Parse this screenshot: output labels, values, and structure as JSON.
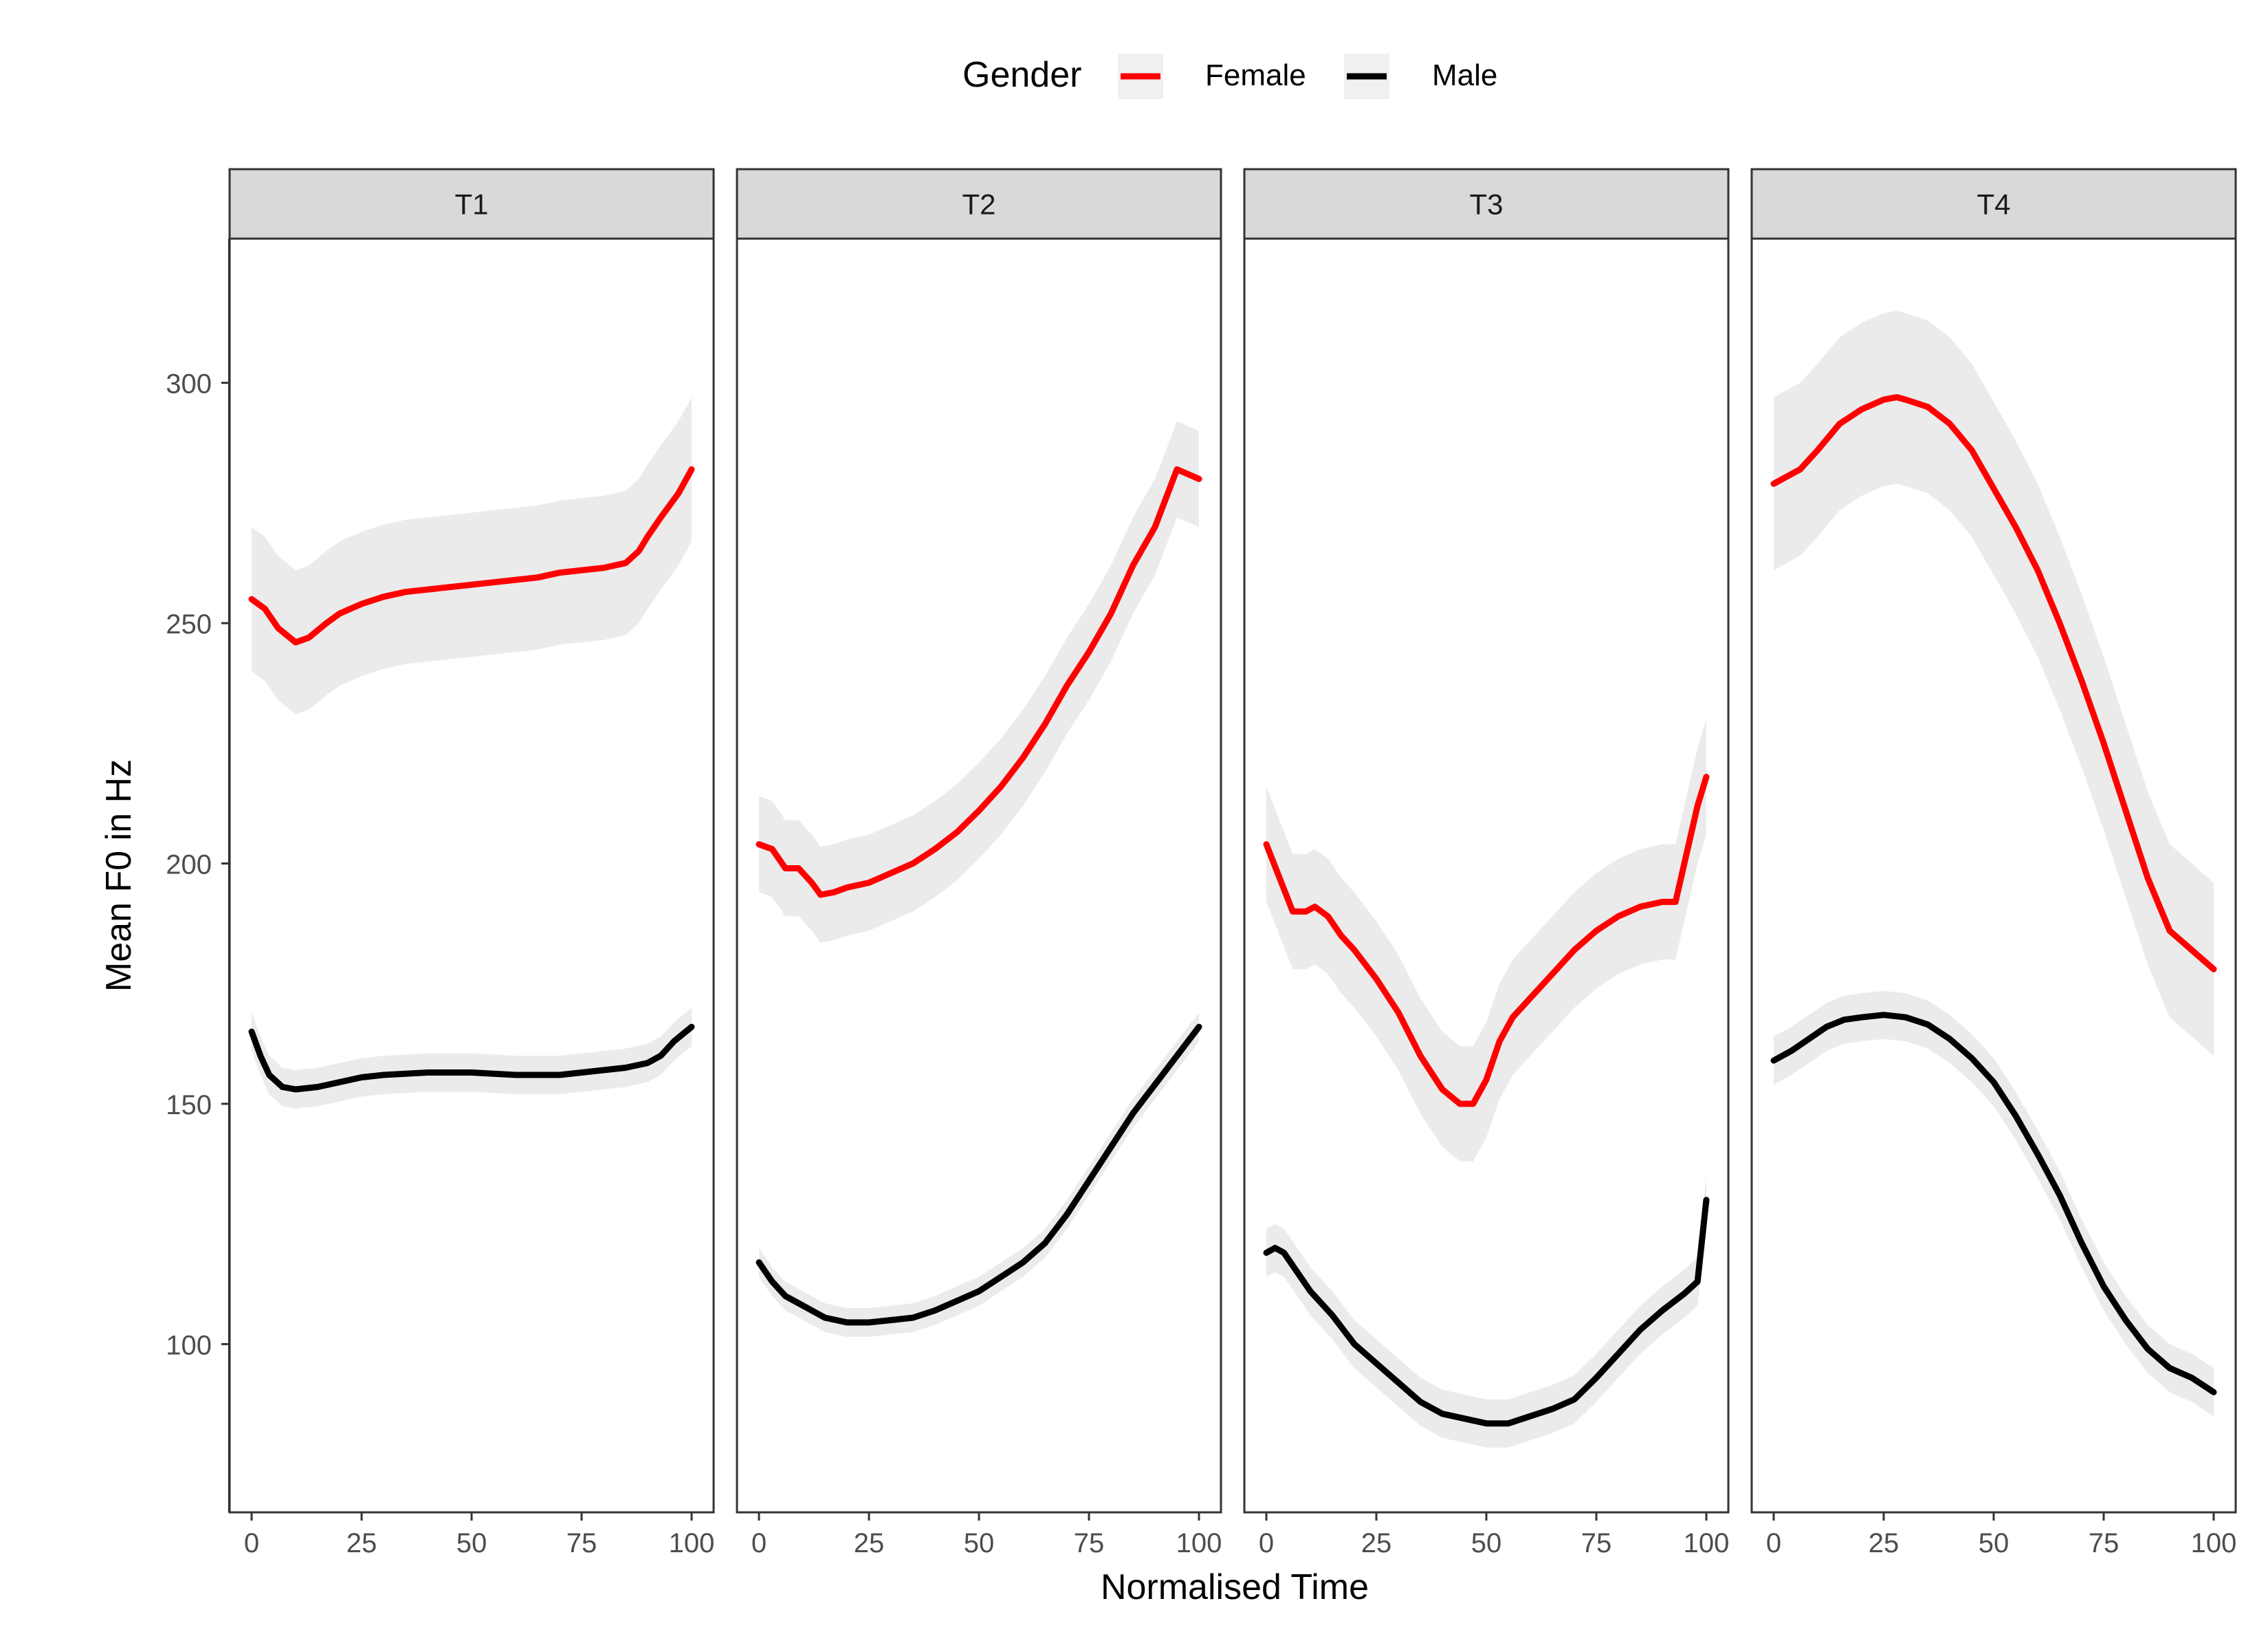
{
  "chart_data": {
    "type": "line",
    "facet_variable": "tone",
    "xlabel": "Normalised Time",
    "ylabel": "Mean F0 in Hz",
    "xlim": [
      -5,
      105
    ],
    "ylim": [
      65,
      330
    ],
    "x_ticks": [
      0,
      25,
      50,
      75,
      100
    ],
    "y_ticks": [
      100,
      150,
      200,
      250,
      300
    ],
    "grid": false,
    "legend": {
      "title": "Gender",
      "position": "top",
      "entries": [
        {
          "label": "Female",
          "color": "#ff0000"
        },
        {
          "label": "Male",
          "color": "#000000"
        }
      ]
    },
    "colors": {
      "female": "#ff0000",
      "male": "#000000",
      "ribbon": "#ebebeb",
      "strip": "#d9d9d9"
    },
    "panels": [
      {
        "label": "T1",
        "series": [
          {
            "name": "Female",
            "x": [
              0,
              3,
              6,
              10,
              13,
              17,
              20,
              25,
              30,
              35,
              40,
              45,
              50,
              55,
              60,
              65,
              70,
              75,
              80,
              85,
              88,
              90,
              93,
              97,
              100
            ],
            "y": [
              255,
              253,
              249,
              246,
              247,
              250,
              252,
              254,
              255.5,
              256.5,
              257,
              257.5,
              258,
              258.5,
              259,
              259.5,
              260.5,
              261,
              261.5,
              262.5,
              265,
              268,
              272,
              277,
              282
            ],
            "band": [
              15,
              15,
              15,
              15,
              15,
              15,
              15,
              15,
              15,
              15,
              15,
              15,
              15,
              15,
              15,
              15,
              15,
              15,
              15,
              15,
              15,
              15,
              15,
              15,
              15
            ]
          },
          {
            "name": "Male",
            "x": [
              0,
              2,
              4,
              7,
              10,
              15,
              20,
              25,
              30,
              40,
              50,
              60,
              70,
              75,
              80,
              85,
              90,
              93,
              96,
              100
            ],
            "y": [
              165,
              160,
              156,
              153.5,
              153,
              153.5,
              154.5,
              155.5,
              156,
              156.5,
              156.5,
              156,
              156,
              156.5,
              157,
              157.5,
              158.5,
              160,
              163,
              166
            ],
            "band": [
              4,
              4,
              4,
              4,
              4,
              4,
              4,
              4,
              4,
              4,
              4,
              4,
              4,
              4,
              4,
              4,
              4,
              4,
              4,
              4
            ]
          }
        ]
      },
      {
        "label": "T2",
        "series": [
          {
            "name": "Female",
            "x": [
              0,
              3,
              6,
              9,
              12,
              14,
              17,
              20,
              25,
              30,
              35,
              40,
              45,
              50,
              55,
              60,
              65,
              70,
              75,
              80,
              85,
              90,
              95,
              100
            ],
            "y": [
              204,
              203,
              199,
              199,
              196,
              193.5,
              194,
              195,
              196,
              198,
              200,
              203,
              206.5,
              211,
              216,
              222,
              229,
              237,
              244,
              252,
              262,
              270,
              282,
              280
            ],
            "band": [
              10,
              10,
              10,
              10,
              10,
              10,
              10,
              10,
              10,
              10,
              10,
              10,
              10,
              10,
              10,
              10,
              10,
              10,
              10,
              10,
              10,
              10,
              10,
              10
            ]
          },
          {
            "name": "Male",
            "x": [
              0,
              3,
              6,
              10,
              15,
              20,
              25,
              30,
              35,
              40,
              45,
              50,
              55,
              60,
              65,
              70,
              75,
              80,
              85,
              90,
              95,
              100
            ],
            "y": [
              117,
              113,
              110,
              108,
              105.5,
              104.5,
              104.5,
              105,
              105.5,
              107,
              109,
              111,
              114,
              117,
              121,
              127,
              134,
              141,
              148,
              154,
              160,
              166
            ],
            "band": [
              3,
              3,
              3,
              3,
              3,
              3,
              3,
              3,
              3,
              3,
              3,
              3,
              3,
              3,
              3,
              3,
              3,
              3,
              3,
              3,
              3,
              3
            ]
          }
        ]
      },
      {
        "label": "T3",
        "series": [
          {
            "name": "Female",
            "x": [
              0,
              3,
              6,
              9,
              11,
              14,
              17,
              20,
              25,
              30,
              35,
              40,
              44,
              47,
              50,
              53,
              56,
              60,
              65,
              70,
              75,
              80,
              85,
              90,
              93,
              95,
              98,
              100
            ],
            "y": [
              204,
              197,
              190,
              190,
              191,
              189,
              185,
              182,
              176,
              169,
              160,
              153,
              150,
              150,
              155,
              163,
              168,
              172,
              177,
              182,
              186,
              189,
              191,
              192,
              192,
              200,
              212,
              218
            ],
            "band": [
              12,
              12,
              12,
              12,
              12,
              12,
              12,
              12,
              12,
              12,
              12,
              12,
              12,
              12,
              12,
              12,
              12,
              12,
              12,
              12,
              12,
              12,
              12,
              12,
              12,
              12,
              12,
              12
            ]
          },
          {
            "name": "Male",
            "x": [
              0,
              2,
              4,
              7,
              10,
              15,
              20,
              25,
              30,
              35,
              40,
              45,
              50,
              55,
              60,
              65,
              70,
              75,
              80,
              85,
              90,
              95,
              98,
              100
            ],
            "y": [
              119,
              120,
              119,
              115,
              111,
              106,
              100,
              96,
              92,
              88,
              85.5,
              84.5,
              83.5,
              83.5,
              85,
              86.5,
              88.5,
              93,
              98,
              103,
              107,
              110.5,
              113,
              130
            ],
            "band": [
              5,
              5,
              5,
              5,
              5,
              5,
              5,
              5,
              5,
              5,
              5,
              5,
              5,
              5,
              5,
              5,
              5,
              5,
              5,
              5,
              5,
              5,
              5,
              5
            ]
          }
        ]
      },
      {
        "label": "T4",
        "series": [
          {
            "name": "Female",
            "x": [
              0,
              3,
              6,
              10,
              15,
              20,
              25,
              28,
              30,
              35,
              40,
              45,
              50,
              55,
              60,
              65,
              70,
              75,
              80,
              85,
              90,
              95,
              100
            ],
            "y": [
              279,
              280.5,
              282,
              286,
              291.5,
              294.5,
              296.5,
              297,
              296.5,
              295,
              291.5,
              286,
              278,
              270,
              261,
              250,
              238,
              225,
              211,
              197,
              186,
              182,
              178
            ],
            "band": [
              18,
              18,
              18,
              18,
              18,
              18,
              18,
              18,
              18,
              18,
              18,
              18,
              18,
              18,
              18,
              18,
              18,
              18,
              18,
              18,
              18,
              18,
              18
            ]
          },
          {
            "name": "Male",
            "x": [
              0,
              4,
              8,
              12,
              16,
              20,
              25,
              30,
              35,
              40,
              45,
              50,
              55,
              60,
              65,
              70,
              75,
              80,
              85,
              90,
              95,
              100
            ],
            "y": [
              159,
              161,
              163.5,
              166,
              167.5,
              168,
              168.5,
              168,
              166.5,
              163.5,
              159.5,
              154.5,
              147.5,
              139.5,
              131,
              121,
              112,
              105,
              99,
              95,
              93,
              90
            ],
            "band": [
              5,
              5,
              5,
              5,
              5,
              5,
              5,
              5,
              5,
              5,
              5,
              5,
              5,
              5,
              5,
              5,
              5,
              5,
              5,
              5,
              5,
              5
            ]
          }
        ]
      }
    ]
  }
}
